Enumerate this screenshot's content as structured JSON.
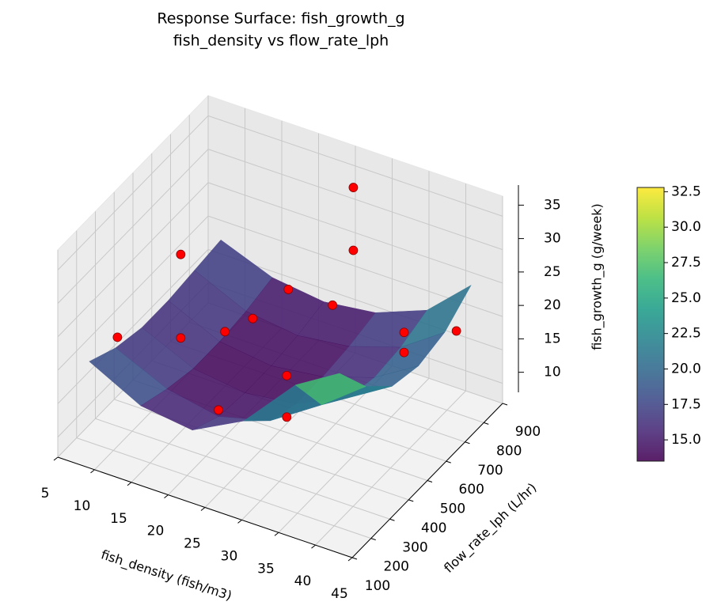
{
  "chart_data": {
    "type": "surface3d",
    "title": "Response Surface: fish_growth_g",
    "subtitle": "fish_density vs flow_rate_lph",
    "xlabel": "fish_density (fish/m3)",
    "ylabel": "flow_rate_lph (L/hr)",
    "zlabel": "fish_growth_g (g/week)",
    "xlim": [
      5,
      45
    ],
    "ylim": [
      100,
      900
    ],
    "zlim": [
      7,
      38
    ],
    "xticks": [
      5,
      10,
      15,
      20,
      25,
      30,
      35,
      40,
      45
    ],
    "yticks": [
      100,
      200,
      300,
      400,
      500,
      600,
      700,
      800,
      900
    ],
    "zticks": [
      10,
      15,
      20,
      25,
      30,
      35
    ],
    "grid": true,
    "colormap": "viridis",
    "surface": {
      "x": [
        8,
        15,
        22,
        29,
        36,
        42
      ],
      "y": [
        150,
        290,
        430,
        570,
        710,
        850
      ],
      "z": [
        [
          21,
          17,
          16,
          20,
          28,
          32
        ],
        [
          19,
          15.5,
          14,
          16,
          21,
          26
        ],
        [
          18,
          14.5,
          13.5,
          14.5,
          18,
          22
        ],
        [
          18,
          14.5,
          13.5,
          14.5,
          17,
          21
        ],
        [
          18.5,
          15,
          14,
          15,
          17.5,
          22
        ],
        [
          19,
          16,
          15,
          16,
          19,
          25
        ]
      ]
    },
    "points": {
      "color": "#ff0000",
      "x": [
        8,
        12,
        12,
        18,
        23,
        20,
        21,
        31,
        31,
        26,
        26,
        27,
        38,
        38,
        40
      ],
      "y": [
        300,
        480,
        480,
        480,
        250,
        550,
        700,
        300,
        300,
        850,
        850,
        700,
        650,
        650,
        850
      ],
      "z": [
        20.3,
        29,
        16.5,
        19.7,
        16.5,
        20.4,
        20.8,
        23.2,
        17,
        33.6,
        24.2,
        20.7,
        22.2,
        19.2,
        17.4
      ]
    },
    "colorbar": {
      "clim": [
        13.5,
        32.8
      ],
      "ticks": [
        {
          "value": 15,
          "label": "15.0"
        },
        {
          "value": 17.5,
          "label": "17.5"
        },
        {
          "value": 20,
          "label": "20.0"
        },
        {
          "value": 22.5,
          "label": "22.5"
        },
        {
          "value": 25,
          "label": "25.0"
        },
        {
          "value": 27.5,
          "label": "27.5"
        },
        {
          "value": 30,
          "label": "30.0"
        },
        {
          "value": 32.5,
          "label": "32.5"
        }
      ]
    }
  }
}
